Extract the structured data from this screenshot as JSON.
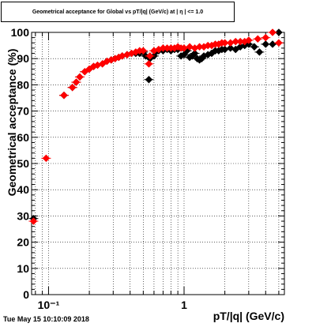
{
  "chart_data": {
    "type": "scatter",
    "title": "Geometrical acceptance for Global vs pT/|q| (GeV/c) at | η | <= 1.0",
    "xlabel": "pT/|q| (GeV/c)",
    "ylabel": "Geometrical acceptance (%)",
    "xscale": "log",
    "xlim": [
      0.075,
      5.5
    ],
    "ylim": [
      0,
      100
    ],
    "grid": true,
    "x_ticks": [
      {
        "value": 0.1,
        "label": "10⁻¹"
      },
      {
        "value": 1,
        "label": "1"
      }
    ],
    "y_ticks": [
      0,
      10,
      20,
      30,
      40,
      50,
      60,
      70,
      80,
      90,
      100
    ],
    "series": [
      {
        "color": "#000000",
        "points": [
          [
            0.0775,
            29
          ],
          [
            0.13,
            76
          ],
          [
            0.15,
            79
          ],
          [
            0.16,
            81
          ],
          [
            0.17,
            83
          ],
          [
            0.185,
            85
          ],
          [
            0.2,
            86
          ],
          [
            0.215,
            87
          ],
          [
            0.23,
            87.5
          ],
          [
            0.25,
            88
          ],
          [
            0.27,
            89
          ],
          [
            0.29,
            89.5
          ],
          [
            0.31,
            90
          ],
          [
            0.33,
            90.5
          ],
          [
            0.35,
            91
          ],
          [
            0.38,
            91.5
          ],
          [
            0.41,
            92
          ],
          [
            0.44,
            92
          ],
          [
            0.47,
            92
          ],
          [
            0.5,
            92.5
          ],
          [
            0.52,
            91
          ],
          [
            0.55,
            82
          ],
          [
            0.56,
            90
          ],
          [
            0.6,
            91
          ],
          [
            0.62,
            92.5
          ],
          [
            0.65,
            93
          ],
          [
            0.7,
            93
          ],
          [
            0.75,
            93.5
          ],
          [
            0.8,
            93
          ],
          [
            0.85,
            93.5
          ],
          [
            0.9,
            93.5
          ],
          [
            0.95,
            91
          ],
          [
            1.0,
            91.5
          ],
          [
            1.05,
            93
          ],
          [
            1.1,
            90.5
          ],
          [
            1.15,
            91
          ],
          [
            1.2,
            92
          ],
          [
            1.25,
            90
          ],
          [
            1.3,
            89.5
          ],
          [
            1.35,
            90
          ],
          [
            1.4,
            91
          ],
          [
            1.5,
            91.5
          ],
          [
            1.6,
            92
          ],
          [
            1.7,
            93
          ],
          [
            1.8,
            93
          ],
          [
            1.9,
            93.5
          ],
          [
            2.0,
            93.5
          ],
          [
            2.2,
            94
          ],
          [
            2.4,
            93.5
          ],
          [
            2.6,
            94.5
          ],
          [
            2.8,
            95
          ],
          [
            3.0,
            95.5
          ],
          [
            3.3,
            94.5
          ],
          [
            3.6,
            92.5
          ],
          [
            4.0,
            95.5
          ],
          [
            4.5,
            95.5
          ],
          [
            5.0,
            100
          ]
        ]
      },
      {
        "color": "#ff0000",
        "points": [
          [
            0.0775,
            28
          ],
          [
            0.096,
            52
          ],
          [
            0.13,
            76
          ],
          [
            0.15,
            79
          ],
          [
            0.16,
            81
          ],
          [
            0.17,
            83
          ],
          [
            0.185,
            85
          ],
          [
            0.2,
            86
          ],
          [
            0.215,
            87
          ],
          [
            0.23,
            87.5
          ],
          [
            0.25,
            88
          ],
          [
            0.27,
            89
          ],
          [
            0.29,
            89.5
          ],
          [
            0.31,
            90
          ],
          [
            0.33,
            90.5
          ],
          [
            0.35,
            91
          ],
          [
            0.38,
            91.5
          ],
          [
            0.41,
            92
          ],
          [
            0.44,
            92.5
          ],
          [
            0.47,
            93
          ],
          [
            0.5,
            93
          ],
          [
            0.55,
            88
          ],
          [
            0.56,
            91
          ],
          [
            0.6,
            93
          ],
          [
            0.65,
            93.5
          ],
          [
            0.7,
            94
          ],
          [
            0.75,
            94
          ],
          [
            0.8,
            94
          ],
          [
            0.85,
            94
          ],
          [
            0.9,
            94.5
          ],
          [
            0.95,
            94
          ],
          [
            1.0,
            94
          ],
          [
            1.1,
            94.5
          ],
          [
            1.2,
            94
          ],
          [
            1.3,
            94.5
          ],
          [
            1.4,
            94.5
          ],
          [
            1.5,
            95
          ],
          [
            1.6,
            95
          ],
          [
            1.7,
            95.5
          ],
          [
            1.8,
            95.5
          ],
          [
            1.9,
            96
          ],
          [
            2.0,
            96
          ],
          [
            2.2,
            96
          ],
          [
            2.4,
            96.5
          ],
          [
            2.6,
            96.5
          ],
          [
            2.8,
            96.5
          ],
          [
            3.0,
            97
          ],
          [
            3.5,
            97.5
          ],
          [
            4.0,
            98
          ],
          [
            4.5,
            100
          ],
          [
            5.0,
            96
          ]
        ]
      }
    ]
  },
  "footer": {
    "timestamp": "Tue May 15 10:10:09 2018"
  }
}
